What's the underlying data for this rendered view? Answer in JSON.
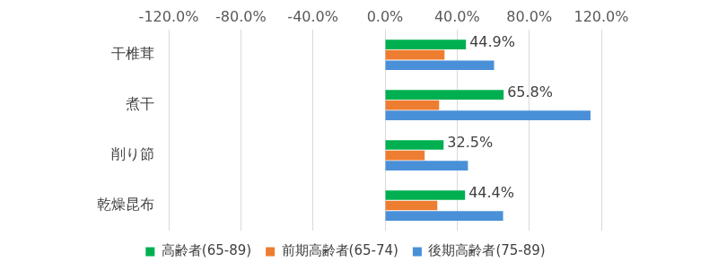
{
  "chart_data": {
    "type": "bar",
    "orientation": "horizontal",
    "categories": [
      "干椎茸",
      "煮干",
      "削り節",
      "乾燥昆布"
    ],
    "series": [
      {
        "name": "高齢者(65-89)",
        "color": "#00b050",
        "values": [
          44.9,
          65.8,
          32.5,
          44.4
        ],
        "data_labels": true,
        "value_labels": [
          "44.9%",
          "65.8%",
          "32.5%",
          "44.4%"
        ]
      },
      {
        "name": "前期高齢者(65-74)",
        "color": "#ed7d31",
        "values": [
          33,
          30,
          22,
          29
        ]
      },
      {
        "name": "後期高齢者(75-89)",
        "color": "#4a90d9",
        "values": [
          60.5,
          114,
          46,
          65.5
        ]
      }
    ],
    "xlim": [
      -120,
      120
    ],
    "xticks": [
      {
        "value": -120,
        "label": "-120.0%"
      },
      {
        "value": -80,
        "label": "-80.0%"
      },
      {
        "value": -40,
        "label": "-40.0%"
      },
      {
        "value": 0,
        "label": "0.0%"
      },
      {
        "value": 40,
        "label": "40.0%"
      },
      {
        "value": 80,
        "label": "80.0%"
      },
      {
        "value": 120,
        "label": "120.0%"
      }
    ],
    "grid": true,
    "legend": "bottom"
  }
}
